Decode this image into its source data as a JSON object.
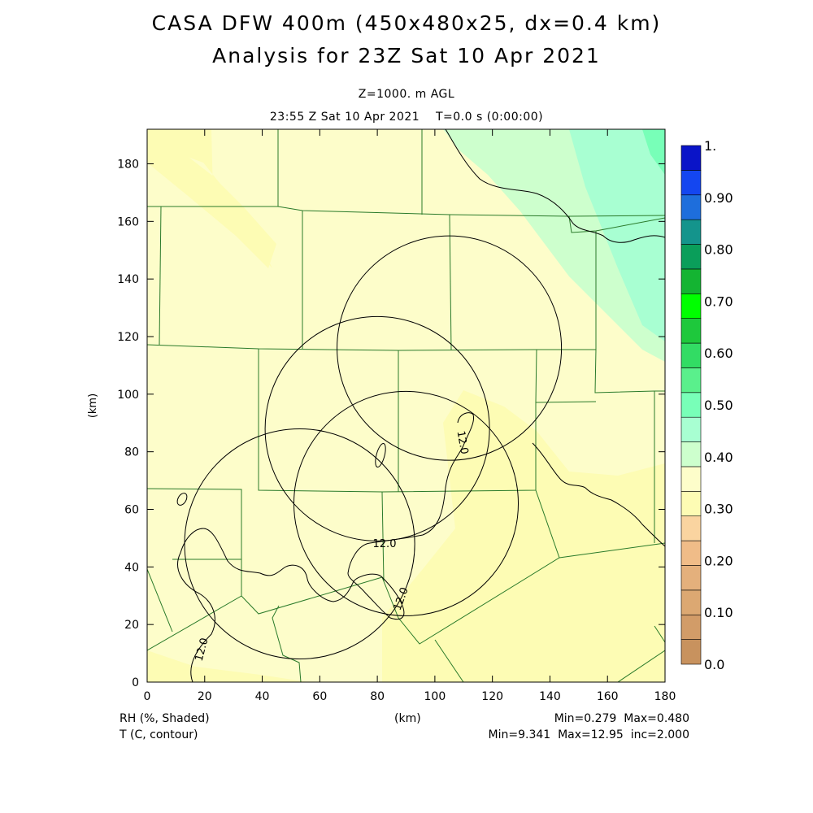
{
  "header": {
    "title_line1": "CASA DFW 400m (450x480x25, dx=0.4 km)",
    "title_line2": "Analysis for 23Z Sat 10 Apr 2021",
    "level": "Z=1000. m AGL",
    "valid_time": "23:55 Z Sat 10 Apr 2021    T=0.0 s (0:00:00)"
  },
  "chart_data": {
    "type": "heatmap",
    "xlabel": "(km)",
    "ylabel": "(km)",
    "xlim": [
      0,
      180
    ],
    "ylim": [
      0,
      192
    ],
    "x_ticks": [
      "0",
      "20",
      "40",
      "60",
      "80",
      "100",
      "120",
      "140",
      "160",
      "180"
    ],
    "y_ticks": [
      "0",
      "20",
      "40",
      "60",
      "80",
      "100",
      "120",
      "140",
      "160",
      "180"
    ],
    "shaded_field": "RH (%, Shaded)",
    "contour_field": "T (C, contour)",
    "shaded_stats": "Min=0.279  Max=0.480",
    "contour_stats": "Min=9.341  Max=12.95  inc=2.000",
    "contour_labels": [
      "12.0",
      "12.0",
      "12.0",
      "12.0"
    ],
    "colorbar": {
      "levels": [
        0.0,
        0.05,
        0.1,
        0.15,
        0.2,
        0.25,
        0.3,
        0.35,
        0.4,
        0.45,
        0.5,
        0.55,
        0.6,
        0.65,
        0.7,
        0.75,
        0.8,
        0.85,
        0.9,
        0.95,
        1.0
      ],
      "labels": [
        "0.0",
        "0.10",
        "0.20",
        "0.30",
        "0.40",
        "0.50",
        "0.60",
        "0.70",
        "0.80",
        "0.90",
        "1."
      ],
      "colors": [
        "#c8925e",
        "#d29c68",
        "#dca872",
        "#e4b07c",
        "#f0bc88",
        "#fad4a0",
        "#fdfcb4",
        "#fdfdca",
        "#cdffcd",
        "#a8ffd2",
        "#78ffb8",
        "#5af08c",
        "#32dc64",
        "#1ec83c",
        "#00ff00",
        "#14b432",
        "#0a9e5a",
        "#14948c",
        "#1e6edc",
        "#1446f0",
        "#0a14c8"
      ]
    },
    "radar_circles": [
      {
        "cx": 105,
        "cy": 116,
        "r": 39
      },
      {
        "cx": 80,
        "cy": 88,
        "r": 39
      },
      {
        "cx": 90,
        "cy": 62,
        "r": 39
      },
      {
        "cx": 53,
        "cy": 48,
        "r": 40
      }
    ]
  },
  "footer": {
    "left_line1": "RH (%, Shaded)",
    "left_line2": "T (C, contour)",
    "center": "(km)",
    "right_line1": "Min=0.279  Max=0.480",
    "right_line2": "Min=9.341  Max=12.95  inc=2.000"
  }
}
